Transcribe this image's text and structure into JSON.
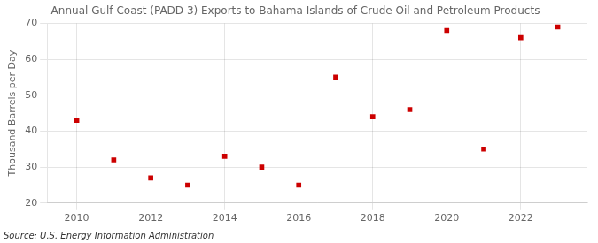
{
  "chart_data": {
    "type": "scatter",
    "title": "Annual Gulf Coast (PADD 3) Exports to Bahama Islands of Crude Oil and Petroleum Products",
    "ylabel": "Thousand Barrels per Day",
    "annotation": "Source: U.S. Energy Information Administration",
    "x": [
      2010,
      2011,
      2012,
      2013,
      2014,
      2015,
      2016,
      2017,
      2018,
      2019,
      2020,
      2021,
      2022,
      2023
    ],
    "values": [
      43,
      32,
      27,
      25,
      33,
      30,
      25,
      55,
      44,
      46,
      68,
      35,
      66,
      69
    ],
    "color": "#cc0000",
    "marker": "square",
    "xlim": [
      2009.2,
      2023.8
    ],
    "xticks": [
      2010,
      2012,
      2014,
      2016,
      2018,
      2020,
      2022
    ],
    "ylim": [
      20,
      70
    ],
    "yticks": [
      20,
      30,
      40,
      50,
      60,
      70
    ],
    "grid": true
  }
}
